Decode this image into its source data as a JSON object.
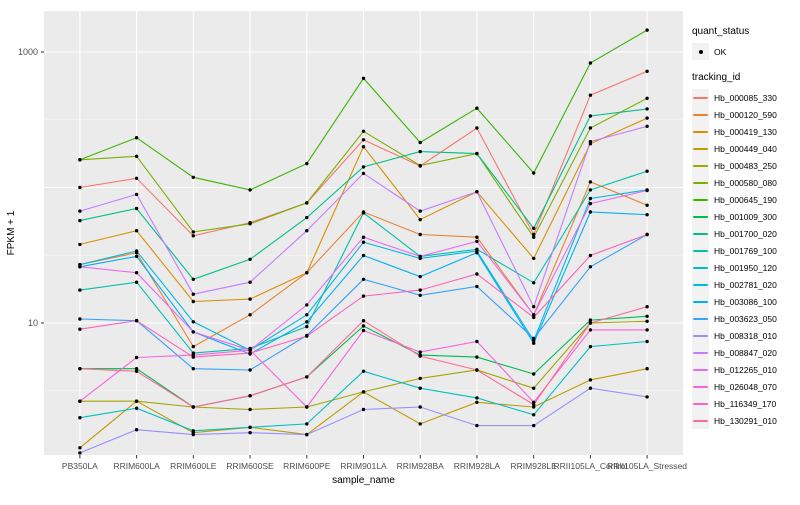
{
  "y_axis": {
    "title": "FPKM + 1",
    "tick_labels": [
      "1000",
      "10"
    ]
  },
  "x_axis": {
    "title": "sample_name"
  },
  "legend": {
    "quant_status_title": "quant_status",
    "quant_status_items": [
      {
        "label": "OK",
        "marker": "point",
        "color": "#000000"
      }
    ],
    "tracking_id_title": "tracking_id"
  },
  "style": {
    "panel_bg": "#ebebeb",
    "grid_major": "#ffffff",
    "grid_minor": "#f5f5f5",
    "tick_color": "#333333",
    "point_color": "#000000",
    "legend_key_bg": "#f2f2f2"
  },
  "chart_data": {
    "type": "line",
    "title": "",
    "xlabel": "sample_name",
    "ylabel": "FPKM + 1",
    "yscale": "log10",
    "ylim": [
      1.06,
      2000
    ],
    "ytick_values": [
      10,
      1000
    ],
    "ygrid_major": [
      10,
      100,
      1000
    ],
    "ygrid_minor": [
      3.162,
      31.62,
      316.2
    ],
    "grid": true,
    "legend_position": "right",
    "categories": [
      "PB350LA",
      "RRIM600LA",
      "RRIM600LE",
      "RRIM600SE",
      "RRIM600PE",
      "RRIM901LA",
      "RRIM928BA",
      "RRIM928LA",
      "RRIM928LE",
      "RRII105LA_Control",
      "RRII105LA_Stressed"
    ],
    "series": [
      {
        "name": "Hb_000085_330",
        "color": "#F8766D",
        "values": [
          100,
          117,
          44,
          55,
          77,
          225,
          144,
          275,
          45,
          480,
          720
        ]
      },
      {
        "name": "Hb_000120_590",
        "color": "#EA8331",
        "values": [
          27,
          33,
          6.7,
          11.5,
          23.5,
          66,
          45,
          43,
          11.5,
          110,
          74
        ]
      },
      {
        "name": "Hb_000419_130",
        "color": "#D89000",
        "values": [
          38,
          48,
          14.4,
          15,
          23.5,
          200,
          58,
          93,
          30,
          210,
          325
        ]
      },
      {
        "name": "Hb_000449_040",
        "color": "#C09B00",
        "values": [
          1.2,
          2.65,
          1.55,
          1.7,
          1.5,
          3.1,
          1.8,
          2.6,
          2.4,
          3.8,
          4.6
        ]
      },
      {
        "name": "Hb_000483_250",
        "color": "#A3A500",
        "values": [
          2.65,
          2.65,
          2.4,
          2.3,
          2.4,
          3.1,
          3.9,
          4.5,
          3.3,
          10,
          10.3
        ]
      },
      {
        "name": "Hb_000580_080",
        "color": "#7CAE00",
        "values": [
          160,
          170,
          47,
          54,
          77,
          260,
          145,
          178,
          43,
          275,
          455
        ]
      },
      {
        "name": "Hb_000645_190",
        "color": "#39B600",
        "values": [
          160,
          233,
          119,
          96,
          150,
          640,
          215,
          385,
          128,
          830,
          1450
        ]
      },
      {
        "name": "Hb_001009_300",
        "color": "#00BB4E",
        "values": [
          4.6,
          4.6,
          2.4,
          2.9,
          4.0,
          9.5,
          5.8,
          5.6,
          4.2,
          10.5,
          11.2
        ]
      },
      {
        "name": "Hb_001700_020",
        "color": "#00C087",
        "values": [
          57,
          70,
          21,
          29.5,
          60,
          142,
          184,
          178,
          50,
          337,
          380
        ]
      },
      {
        "name": "Hb_001769_100",
        "color": "#00C1AB",
        "values": [
          17.5,
          20,
          6.0,
          6.5,
          9.4,
          65,
          31,
          35,
          19.8,
          96,
          132
        ]
      },
      {
        "name": "Hb_001950_120",
        "color": "#00BFC4",
        "values": [
          2.0,
          2.35,
          1.6,
          1.7,
          1.8,
          4.4,
          3.3,
          2.8,
          2.1,
          6.7,
          7.3
        ]
      },
      {
        "name": "Hb_002781_020",
        "color": "#00BAE0",
        "values": [
          27,
          34,
          10.2,
          6.3,
          11.5,
          39.5,
          30,
          34,
          7.4,
          83,
          96
        ]
      },
      {
        "name": "Hb_003086_100",
        "color": "#00B0F6",
        "values": [
          26,
          31,
          8.6,
          5.9,
          10.2,
          31.5,
          22,
          33,
          7.1,
          66,
          63
        ]
      },
      {
        "name": "Hb_003623_050",
        "color": "#35A2FF",
        "values": [
          10.7,
          10.4,
          4.6,
          4.5,
          8.1,
          21,
          16,
          18.6,
          7.7,
          26,
          45
        ]
      },
      {
        "name": "Hb_008318_010",
        "color": "#9590FF",
        "values": [
          1.1,
          1.63,
          1.5,
          1.55,
          1.5,
          2.3,
          2.4,
          1.75,
          1.75,
          3.3,
          2.85
        ]
      },
      {
        "name": "Hb_008847_020",
        "color": "#C77CFF",
        "values": [
          67,
          89,
          16.3,
          20,
          48,
          127,
          67,
          93,
          13.2,
          218,
          283
        ]
      },
      {
        "name": "Hb_012265_010",
        "color": "#E76BF3",
        "values": [
          26,
          23.5,
          8.6,
          6.3,
          13.6,
          43,
          31,
          40,
          11.5,
          76,
          95
        ]
      },
      {
        "name": "Hb_026048_070",
        "color": "#FA62DB",
        "values": [
          2.65,
          5.56,
          5.8,
          6.3,
          2.4,
          8.8,
          6.1,
          7.3,
          2.6,
          8.9,
          8.9
        ]
      },
      {
        "name": "Hb_116349_170",
        "color": "#FF62BC",
        "values": [
          9,
          10.4,
          5.6,
          6.0,
          8.0,
          15.8,
          17.5,
          23,
          11,
          31.5,
          45
        ]
      },
      {
        "name": "Hb_130291_010",
        "color": "#FF6A98",
        "values": [
          4.6,
          4.4,
          2.4,
          2.9,
          4.0,
          10.4,
          5.7,
          4.5,
          2.5,
          10,
          13.2
        ]
      }
    ]
  }
}
